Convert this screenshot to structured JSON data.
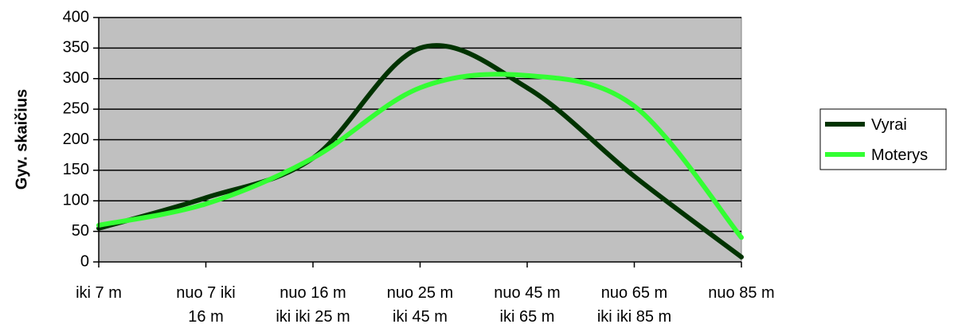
{
  "chart_data": {
    "type": "line",
    "categories": [
      [
        "iki 7 m"
      ],
      [
        "nuo 7 iki",
        "16 m"
      ],
      [
        "nuo 16 m",
        "iki iki 25 m"
      ],
      [
        "nuo 25 m",
        "iki 45 m"
      ],
      [
        "nuo 45 m",
        "iki 65 m"
      ],
      [
        "nuo 65 m",
        "iki iki 85 m"
      ],
      [
        "nuo 85 m"
      ]
    ],
    "series": [
      {
        "name": "Vyrai",
        "color": "#003300",
        "values": [
          55,
          105,
          170,
          350,
          285,
          140,
          8
        ]
      },
      {
        "name": "Moterys",
        "color": "#33ff33",
        "values": [
          60,
          95,
          170,
          285,
          305,
          255,
          40
        ]
      }
    ],
    "ylabel": "Gyv. skaičius",
    "ylim": [
      0,
      400
    ],
    "yticks": [
      0,
      50,
      100,
      150,
      200,
      250,
      300,
      350,
      400
    ],
    "grid": true,
    "plot_background": "#c0c0c0",
    "smooth": true,
    "legend_position": "right"
  }
}
